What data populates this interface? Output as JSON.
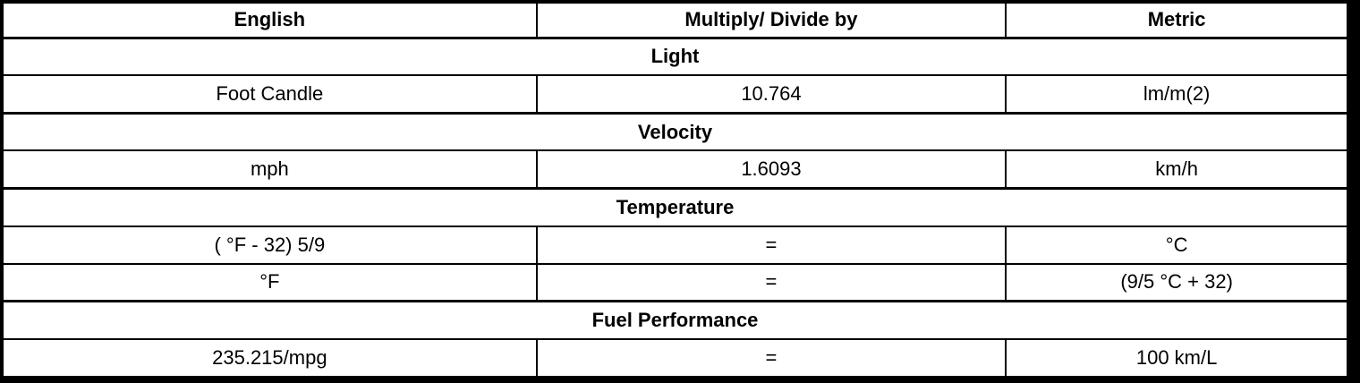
{
  "table": {
    "headers": [
      "English",
      "Multiply/ Divide by",
      "Metric"
    ],
    "sections": [
      {
        "title": "Light",
        "rows": [
          [
            "Foot Candle",
            "10.764",
            "lm/m(2)"
          ]
        ]
      },
      {
        "title": "Velocity",
        "rows": [
          [
            "mph",
            "1.6093",
            "km/h"
          ]
        ]
      },
      {
        "title": "Temperature",
        "rows": [
          [
            "( °F - 32) 5/9",
            "=",
            "°C"
          ],
          [
            "°F",
            "=",
            "(9/5 °C + 32)"
          ]
        ]
      },
      {
        "title": "Fuel Performance",
        "rows": [
          [
            "235.215/mpg",
            "=",
            "100 km/L"
          ]
        ]
      }
    ]
  }
}
